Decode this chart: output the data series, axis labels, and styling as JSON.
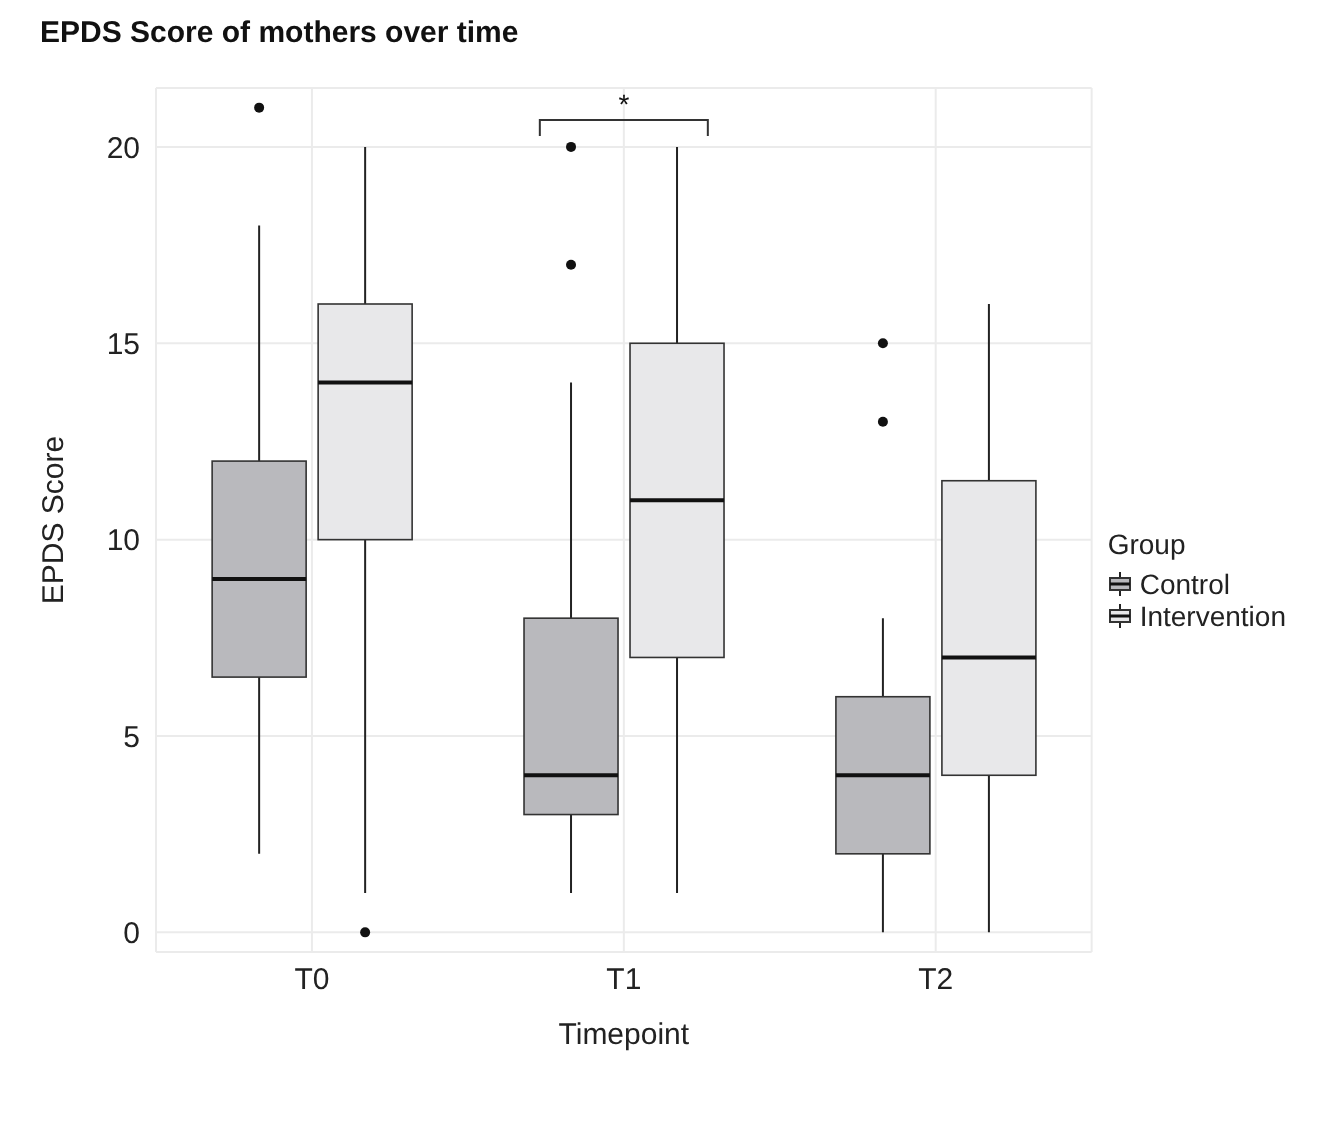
{
  "chart_data": {
    "type": "box",
    "title": "EPDS Score of mothers over time",
    "xlabel": "Timepoint",
    "ylabel": "EPDS Score",
    "legend_title": "Group",
    "categories": [
      "T0",
      "T1",
      "T2"
    ],
    "series": [
      {
        "name": "Control",
        "color": "#b9b9bd",
        "boxes": [
          {
            "low": 2,
            "q1": 6.5,
            "median": 9,
            "q3": 12,
            "high": 18,
            "outliers": [
              21
            ]
          },
          {
            "low": 1,
            "q1": 3,
            "median": 4,
            "q3": 8,
            "high": 14,
            "outliers": [
              17,
              20
            ]
          },
          {
            "low": 0,
            "q1": 2,
            "median": 4,
            "q3": 6,
            "high": 8,
            "outliers": [
              13,
              15
            ]
          }
        ]
      },
      {
        "name": "Intervention",
        "color": "#e8e8ea",
        "boxes": [
          {
            "low": 1,
            "q1": 10,
            "median": 14,
            "q3": 16,
            "high": 20,
            "outliers": [
              0
            ]
          },
          {
            "low": 1,
            "q1": 7,
            "median": 11,
            "q3": 15,
            "high": 20
          },
          {
            "low": 0,
            "q1": 4,
            "median": 7,
            "q3": 11.5,
            "high": 16
          }
        ]
      }
    ],
    "annotations": [
      "*"
    ],
    "ylim": [
      -0.5,
      21.5
    ],
    "yticks": [
      0,
      5,
      10,
      15,
      20
    ],
    "grid": true,
    "legend": "right"
  }
}
